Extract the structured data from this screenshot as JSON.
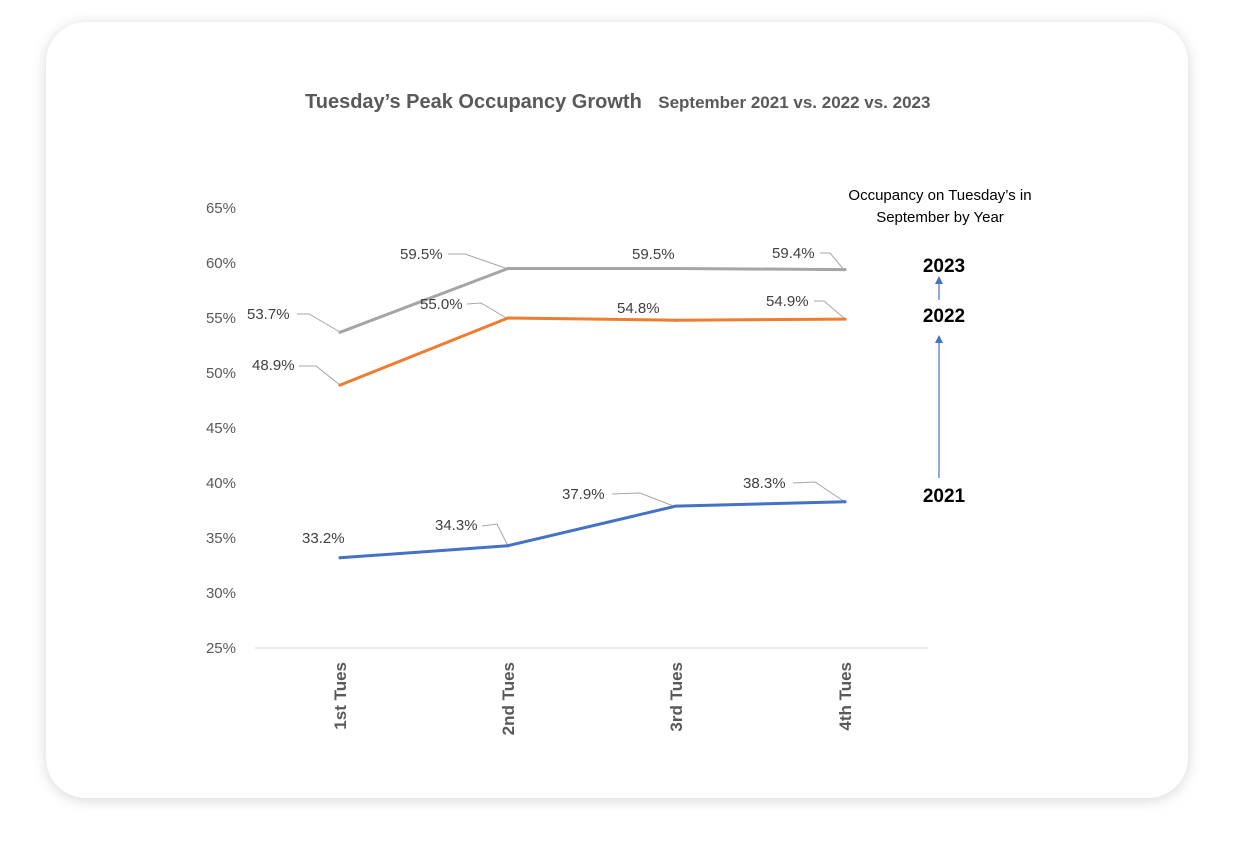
{
  "chart_data": {
    "type": "line",
    "title": "Tuesday’s Peak Occupancy Growth",
    "subtitle": "September 2021 vs. 2022 vs. 2023",
    "categories": [
      "1st Tues",
      "2nd Tues",
      "3rd Tues",
      "4th Tues"
    ],
    "ylim": [
      25,
      65
    ],
    "yticks": [
      "25%",
      "30%",
      "35%",
      "40%",
      "45%",
      "50%",
      "55%",
      "60%",
      "65%"
    ],
    "grid": false,
    "series": [
      {
        "name": "2021",
        "color": "#4472C4",
        "values": [
          33.2,
          34.3,
          37.9,
          38.3
        ],
        "labels": [
          "33.2%",
          "34.3%",
          "37.9%",
          "38.3%"
        ]
      },
      {
        "name": "2022",
        "color": "#ED7D31",
        "values": [
          48.9,
          55.0,
          54.8,
          54.9
        ],
        "labels": [
          "48.9%",
          "55.0%",
          "54.8%",
          "54.9%"
        ]
      },
      {
        "name": "2023",
        "color": "#A5A5A5",
        "values": [
          53.7,
          59.5,
          59.5,
          59.4
        ],
        "labels": [
          "53.7%",
          "59.5%",
          "59.5%",
          "59.4%"
        ]
      }
    ],
    "annotation": {
      "title_line1": "Occupancy on Tuesday’s in",
      "title_line2": "September by Year",
      "years": [
        "2023",
        "2022",
        "2021"
      ],
      "arrow_color": "#4472C4"
    }
  }
}
